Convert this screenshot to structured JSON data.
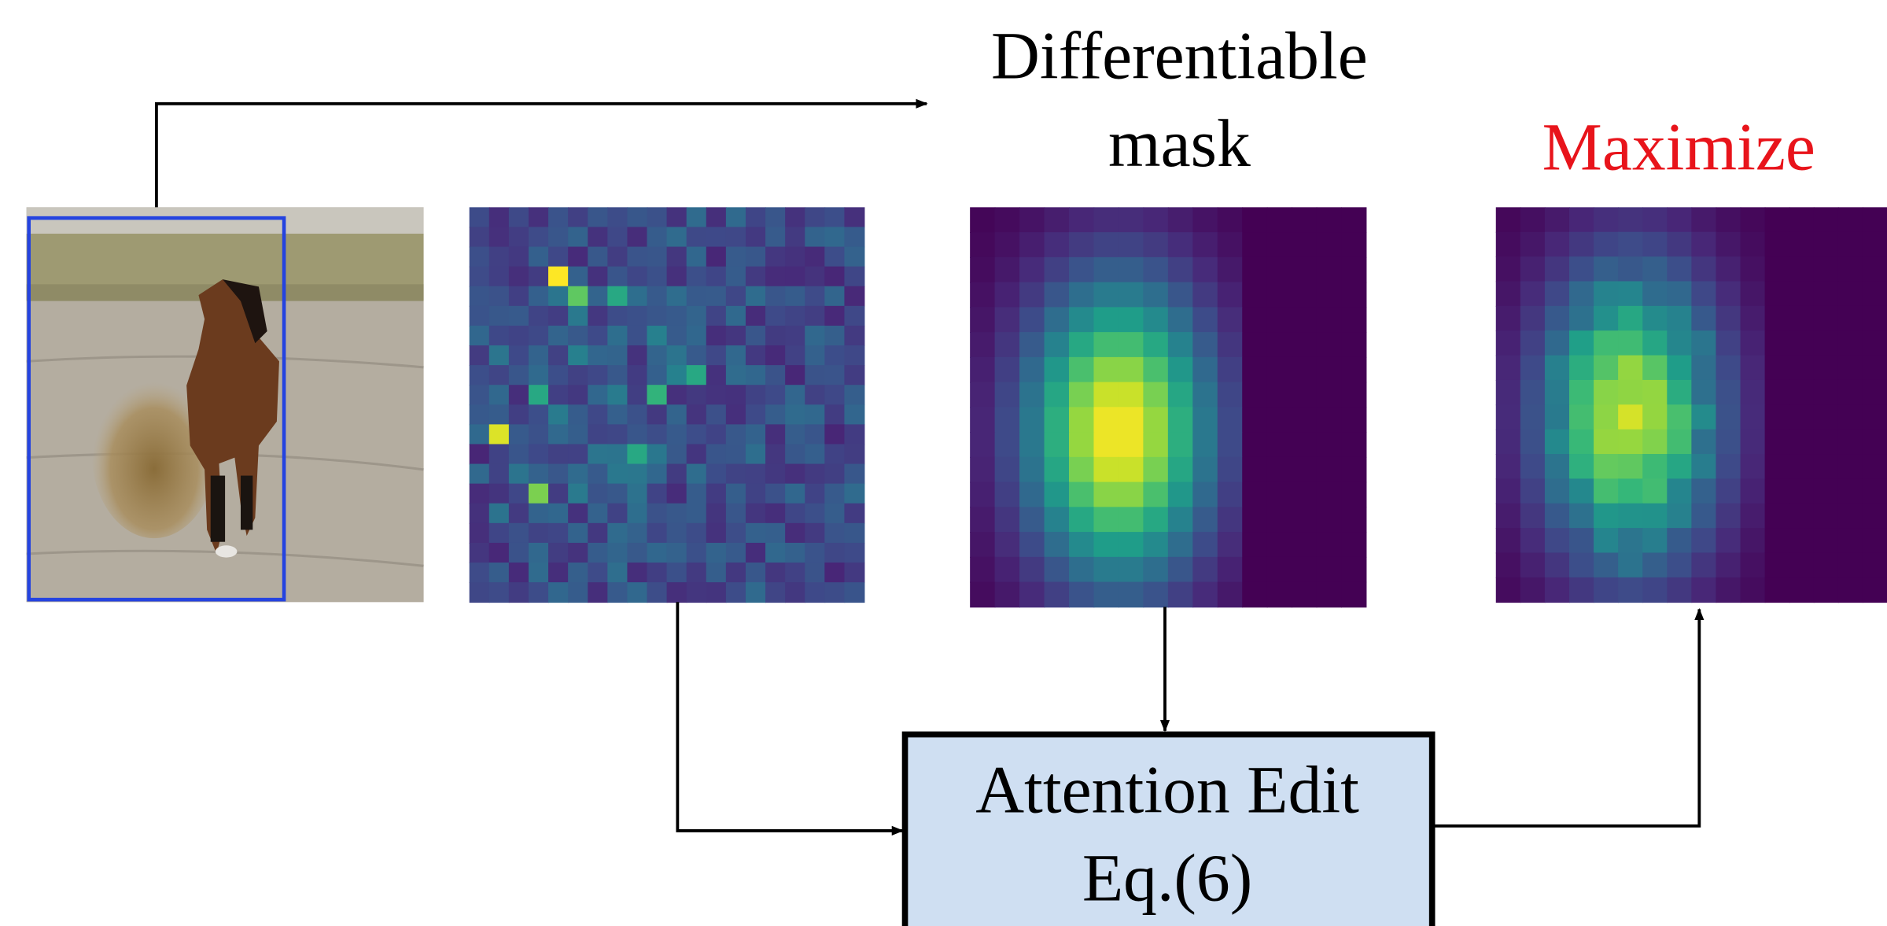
{
  "mask_label": {
    "line1": "Differentiable",
    "line2": "mask"
  },
  "maximize_label": "Maximize",
  "edit_box": {
    "line1": "Attention Edit",
    "line2": "Eq.(6)"
  }
}
